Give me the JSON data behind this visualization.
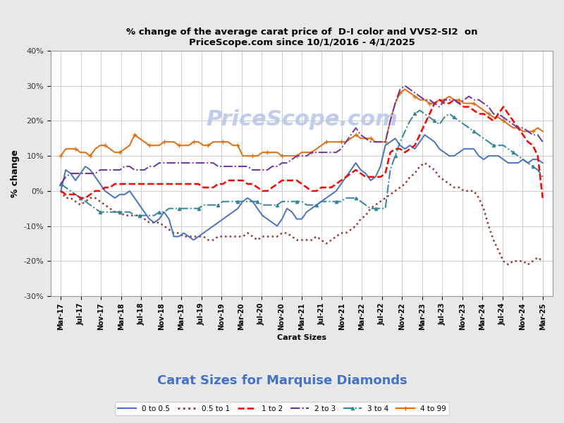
{
  "title_line1": "% change of the average carat price of  D-I color and VVS2-SI2  on",
  "title_line2": "PriceScope.com since 10/1/2016 - 4/1/2025",
  "watermark": "PriceScope.com",
  "xlabel": "Carat Sizes",
  "ylabel": "% change",
  "big_xlabel": "Carat Sizes for Marquise Diamonds",
  "ylim": [
    -30,
    40
  ],
  "yticks": [
    -30,
    -20,
    -10,
    0,
    10,
    20,
    30,
    40
  ],
  "background": "#e8e8e8",
  "plot_background": "#ffffff",
  "series": {
    "0to05": {
      "label": "0 to 0.5",
      "color": "#4472c4",
      "linestyle": "-",
      "linewidth": 1.4
    },
    "05to1": {
      "label": "0.5 to 1",
      "color": "#943634",
      "linestyle": ":",
      "linewidth": 1.8
    },
    "1to2": {
      "label": "1 to 2",
      "color": "#ff0000",
      "linestyle": "--",
      "linewidth": 1.8
    },
    "2to3": {
      "label": "2 to 3",
      "color": "#7030a0",
      "linestyle": "-.",
      "linewidth": 1.4
    },
    "3to4": {
      "label": "3 to 4",
      "color": "#31849b",
      "linestyle": "-.",
      "linewidth": 1.4
    },
    "4to99": {
      "label": "4 to 99",
      "color": "#e36c09",
      "linestyle": "-",
      "linewidth": 1.4
    }
  },
  "xtick_labels": [
    "Mar-17",
    "Jul-17",
    "Nov-17",
    "Mar-18",
    "Jul-18",
    "Nov-18",
    "Mar-19",
    "Jul-19",
    "Nov-19",
    "Mar-20",
    "Jul-20",
    "Nov-20",
    "Mar-21",
    "Jul-21",
    "Nov-21",
    "Mar-22",
    "Jul-22",
    "Nov-22",
    "Mar-23",
    "Jul-23",
    "Nov-23",
    "Mar-24",
    "Jul-24",
    "Nov-24",
    "Mar-25"
  ],
  "data_0to05": [
    0,
    6,
    5,
    3,
    5,
    7,
    6,
    4,
    2,
    0,
    -1,
    -2,
    -1,
    -1,
    0,
    -2,
    -4,
    -6,
    -8,
    -9,
    -8,
    -6,
    -8,
    -13,
    -13,
    -12,
    -13,
    -14,
    -13,
    -12,
    -11,
    -10,
    -9,
    -8,
    -7,
    -6,
    -5,
    -3,
    -2,
    -3,
    -5,
    -7,
    -8,
    -9,
    -10,
    -8,
    -5,
    -6,
    -8,
    -8,
    -6,
    -5,
    -4,
    -3,
    -2,
    -1,
    0,
    2,
    4,
    6,
    8,
    6,
    5,
    3,
    4,
    7,
    13,
    14,
    15,
    13,
    12,
    13,
    12,
    14,
    16,
    15,
    14,
    12,
    11,
    10,
    10,
    11,
    12,
    12,
    12,
    10,
    9,
    10,
    10,
    10,
    9,
    8,
    8,
    8,
    9,
    8,
    9,
    9,
    8
  ],
  "data_05to1": [
    0,
    -2,
    -2,
    -3,
    -4,
    -3,
    -2,
    -2,
    -3,
    -4,
    -5,
    -6,
    -6,
    -7,
    -7,
    -7,
    -7,
    -8,
    -9,
    -9,
    -9,
    -10,
    -11,
    -12,
    -12,
    -13,
    -13,
    -13,
    -13,
    -13,
    -14,
    -14,
    -13,
    -13,
    -13,
    -13,
    -13,
    -13,
    -12,
    -13,
    -14,
    -13,
    -13,
    -13,
    -13,
    -12,
    -12,
    -13,
    -14,
    -14,
    -14,
    -14,
    -13,
    -14,
    -15,
    -14,
    -13,
    -12,
    -12,
    -11,
    -10,
    -8,
    -7,
    -5,
    -4,
    -3,
    -2,
    -1,
    0,
    1,
    2,
    4,
    5,
    7,
    8,
    7,
    6,
    4,
    3,
    2,
    1,
    1,
    0,
    0,
    0,
    -2,
    -5,
    -10,
    -14,
    -17,
    -20,
    -21,
    -20,
    -20,
    -20,
    -21,
    -20,
    -19,
    -20
  ],
  "data_1to2": [
    0,
    -1,
    -1,
    -1,
    -2,
    -2,
    -1,
    0,
    0,
    1,
    1,
    2,
    2,
    2,
    2,
    2,
    2,
    2,
    2,
    2,
    2,
    2,
    2,
    2,
    2,
    2,
    2,
    2,
    2,
    1,
    1,
    1,
    2,
    2,
    3,
    3,
    3,
    3,
    2,
    2,
    1,
    0,
    0,
    1,
    2,
    3,
    3,
    3,
    3,
    2,
    1,
    0,
    0,
    1,
    1,
    1,
    2,
    3,
    4,
    5,
    6,
    5,
    4,
    4,
    4,
    4,
    5,
    11,
    12,
    12,
    11,
    12,
    13,
    16,
    19,
    22,
    25,
    26,
    25,
    25,
    26,
    25,
    24,
    24,
    23,
    22,
    22,
    21,
    20,
    22,
    24,
    22,
    20,
    18,
    16,
    14,
    13,
    10,
    -2
  ],
  "data_2to3": [
    2,
    4,
    5,
    5,
    5,
    5,
    5,
    5,
    6,
    6,
    6,
    6,
    6,
    7,
    7,
    6,
    6,
    6,
    7,
    7,
    8,
    8,
    8,
    8,
    8,
    8,
    8,
    8,
    8,
    8,
    8,
    8,
    7,
    7,
    7,
    7,
    7,
    7,
    7,
    6,
    6,
    6,
    6,
    7,
    7,
    8,
    8,
    9,
    10,
    10,
    10,
    11,
    11,
    11,
    11,
    11,
    11,
    12,
    14,
    16,
    18,
    16,
    15,
    14,
    14,
    14,
    14,
    20,
    25,
    29,
    30,
    29,
    28,
    27,
    26,
    26,
    25,
    24,
    26,
    26,
    26,
    25,
    26,
    27,
    26,
    26,
    25,
    24,
    22,
    22,
    21,
    20,
    19,
    18,
    18,
    17,
    16,
    16,
    14
  ],
  "data_3to4": [
    2,
    1,
    0,
    -1,
    -2,
    -3,
    -4,
    -5,
    -6,
    -6,
    -6,
    -6,
    -6,
    -6,
    -6,
    -7,
    -7,
    -7,
    -7,
    -7,
    -6,
    -6,
    -5,
    -5,
    -5,
    -5,
    -5,
    -5,
    -5,
    -4,
    -4,
    -4,
    -4,
    -3,
    -3,
    -3,
    -3,
    -3,
    -3,
    -3,
    -3,
    -4,
    -4,
    -4,
    -4,
    -3,
    -3,
    -3,
    -3,
    -3,
    -4,
    -4,
    -4,
    -3,
    -3,
    -3,
    -3,
    -3,
    -2,
    -2,
    -2,
    -3,
    -4,
    -5,
    -5,
    -5,
    -5,
    6,
    10,
    14,
    17,
    20,
    22,
    23,
    22,
    21,
    20,
    19,
    21,
    22,
    21,
    20,
    19,
    18,
    17,
    16,
    15,
    14,
    13,
    13,
    13,
    12,
    11,
    10,
    9,
    8,
    7,
    6,
    4
  ],
  "data_4to99": [
    10,
    12,
    12,
    12,
    11,
    11,
    10,
    12,
    13,
    13,
    12,
    11,
    11,
    12,
    13,
    16,
    15,
    14,
    13,
    13,
    13,
    14,
    14,
    14,
    13,
    13,
    13,
    14,
    14,
    13,
    13,
    14,
    14,
    14,
    14,
    13,
    13,
    10,
    10,
    10,
    10,
    11,
    11,
    11,
    11,
    10,
    10,
    10,
    10,
    11,
    11,
    11,
    12,
    13,
    14,
    14,
    14,
    14,
    14,
    15,
    16,
    15,
    15,
    15,
    14,
    14,
    14,
    20,
    25,
    28,
    29,
    28,
    27,
    26,
    26,
    25,
    25,
    26,
    26,
    27,
    26,
    26,
    25,
    25,
    25,
    24,
    23,
    22,
    21,
    21,
    20,
    19,
    18,
    18,
    17,
    17,
    17,
    18,
    17
  ]
}
